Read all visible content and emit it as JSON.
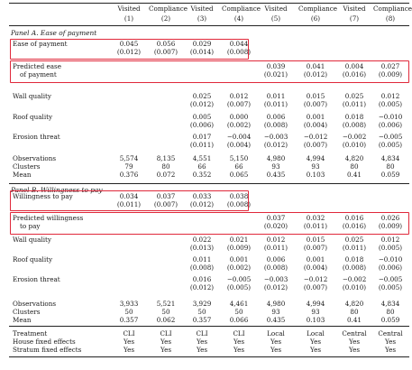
{
  "header": {
    "columns": [
      {
        "name": "Visited",
        "num": "(1)"
      },
      {
        "name": "Compliance",
        "num": "(2)"
      },
      {
        "name": "Visited",
        "num": "(3)"
      },
      {
        "name": "Compliance",
        "num": "(4)"
      },
      {
        "name": "Visited",
        "num": "(5)"
      },
      {
        "name": "Compliance",
        "num": "(6)"
      },
      {
        "name": "Visited",
        "num": "(7)"
      },
      {
        "name": "Compliance",
        "num": "(8)"
      }
    ]
  },
  "panel_a": {
    "title": "Panel A. Ease of payment",
    "rows": [
      {
        "label": [
          "Ease of payment"
        ],
        "coef": [
          "0.045",
          "0.056",
          "0.029",
          "0.044",
          "",
          "",
          "",
          ""
        ],
        "se": [
          "(0.012)",
          "(0.007)",
          "(0.014)",
          "(0.008)",
          "",
          "",
          "",
          ""
        ]
      },
      {
        "label": [
          "Predicted ease",
          "of payment"
        ],
        "coef": [
          "",
          "",
          "",
          "",
          "0.039",
          "0.041",
          "0.004",
          "0.027"
        ],
        "se": [
          "",
          "",
          "",
          "",
          "(0.021)",
          "(0.012)",
          "(0.016)",
          "(0.009)"
        ]
      },
      {
        "label": [
          "Wall quality"
        ],
        "coef": [
          "",
          "",
          "0.025",
          "0.012",
          "0.011",
          "0.015",
          "0.025",
          "0.012"
        ],
        "se": [
          "",
          "",
          "(0.012)",
          "(0.007)",
          "(0.011)",
          "(0.007)",
          "(0.011)",
          "(0.005)"
        ]
      },
      {
        "label": [
          "Roof quality"
        ],
        "coef": [
          "",
          "",
          "0.005",
          "0.000",
          "0.006",
          "0.001",
          "0.018",
          "−0.010"
        ],
        "se": [
          "",
          "",
          "(0.006)",
          "(0.002)",
          "(0.008)",
          "(0.004)",
          "(0.008)",
          "(0.006)"
        ]
      },
      {
        "label": [
          "Erosion threat"
        ],
        "coef": [
          "",
          "",
          "0.017",
          "−0.004",
          "−0.003",
          "−0.012",
          "−0.002",
          "−0.005"
        ],
        "se": [
          "",
          "",
          "(0.011)",
          "(0.004)",
          "(0.012)",
          "(0.007)",
          "(0.010)",
          "(0.005)"
        ]
      }
    ],
    "stats": [
      {
        "label": "Observations",
        "values": [
          "5,574",
          "8,135",
          "4,551",
          "5,150",
          "4,980",
          "4,994",
          "4,820",
          "4,834"
        ]
      },
      {
        "label": "Clusters",
        "values": [
          "79",
          "80",
          "66",
          "66",
          "93",
          "93",
          "80",
          "80"
        ]
      },
      {
        "label": "Mean",
        "values": [
          "0.376",
          "0.072",
          "0.352",
          "0.065",
          "0.435",
          "0.103",
          "0.41",
          "0.059"
        ]
      }
    ]
  },
  "panel_b": {
    "title": "Panel B. Willingness to pay",
    "rows": [
      {
        "label": [
          "Willingness to pay"
        ],
        "coef": [
          "0.034",
          "0.037",
          "0.033",
          "0.038",
          "",
          "",
          "",
          ""
        ],
        "se": [
          "(0.011)",
          "(0.007)",
          "(0.012)",
          "(0.008)",
          "",
          "",
          "",
          ""
        ]
      },
      {
        "label": [
          "Predicted willingness",
          "to pay"
        ],
        "coef": [
          "",
          "",
          "",
          "",
          "0.037",
          "0.032",
          "0.016",
          "0.026"
        ],
        "se": [
          "",
          "",
          "",
          "",
          "(0.020)",
          "(0.011)",
          "(0.016)",
          "(0.009)"
        ]
      },
      {
        "label": [
          "Wall quality"
        ],
        "coef": [
          "",
          "",
          "0.022",
          "0.021",
          "0.012",
          "0.015",
          "0.025",
          "0.012"
        ],
        "se": [
          "",
          "",
          "(0.013)",
          "(0.009)",
          "(0.011)",
          "(0.007)",
          "(0.011)",
          "(0.005)"
        ]
      },
      {
        "label": [
          "Roof quality"
        ],
        "coef": [
          "",
          "",
          "0.011",
          "0.001",
          "0.006",
          "0.001",
          "0.018",
          "−0.010"
        ],
        "se": [
          "",
          "",
          "(0.008)",
          "(0.002)",
          "(0.008)",
          "(0.004)",
          "(0.008)",
          "(0.006)"
        ]
      },
      {
        "label": [
          "Erosion threat"
        ],
        "coef": [
          "",
          "",
          "0.016",
          "−0.005",
          "−0.003",
          "−0.012",
          "−0.002",
          "−0.005"
        ],
        "se": [
          "",
          "",
          "(0.012)",
          "(0.005)",
          "(0.012)",
          "(0.007)",
          "(0.010)",
          "(0.005)"
        ]
      }
    ],
    "stats": [
      {
        "label": "Observations",
        "values": [
          "3,933",
          "5,521",
          "3,929",
          "4,461",
          "4,980",
          "4,994",
          "4,820",
          "4,834"
        ]
      },
      {
        "label": "Clusters",
        "values": [
          "50",
          "50",
          "50",
          "50",
          "93",
          "93",
          "80",
          "80"
        ]
      },
      {
        "label": "Mean",
        "values": [
          "0.357",
          "0.062",
          "0.357",
          "0.066",
          "0.435",
          "0.103",
          "0.41",
          "0.059"
        ]
      }
    ]
  },
  "footer": [
    {
      "label": "Treatment",
      "values": [
        "CLI",
        "CLI",
        "CLI",
        "CLI",
        "Local",
        "Local",
        "Central",
        "Central"
      ]
    },
    {
      "label": "House fixed effects",
      "values": [
        "Yes",
        "Yes",
        "Yes",
        "Yes",
        "Yes",
        "Yes",
        "Yes",
        "Yes"
      ]
    },
    {
      "label": "Stratum fixed effects",
      "values": [
        "Yes",
        "Yes",
        "Yes",
        "Yes",
        "Yes",
        "Yes",
        "Yes",
        "Yes"
      ]
    }
  ],
  "highlight_color": "#e0283a"
}
